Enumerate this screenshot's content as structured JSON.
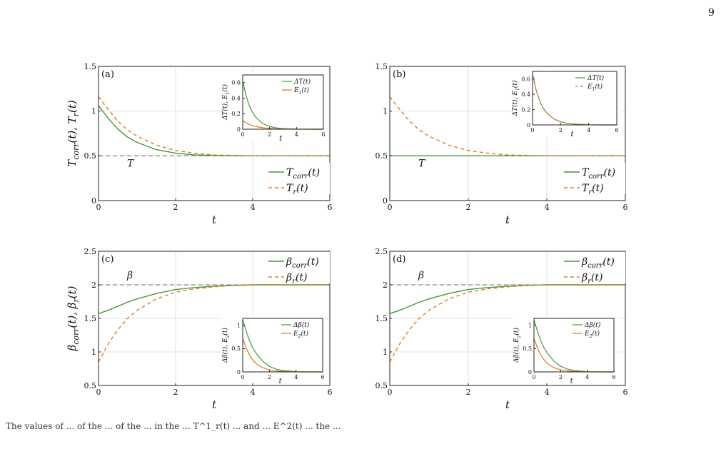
{
  "page_number": "9",
  "caption": "The values of ... of the ... of the ... in the ... T^1_r(t) ... and ... E^2(t) ... the ...",
  "colors": {
    "corr": "#3a9e3a",
    "r": "#e8761a",
    "ref": "#8a8a8a",
    "grid": "#e2e2e2",
    "axis": "#222222"
  },
  "chart_data": [
    {
      "id": "a",
      "type": "line",
      "panel_label": "(a)",
      "xlabel": "t",
      "ylabel": "T_corr(t), T_r(t)",
      "xlim": [
        0,
        6
      ],
      "ylim": [
        0,
        1.5
      ],
      "xticks": [
        0,
        2,
        4,
        6
      ],
      "yticks": [
        0,
        0.5,
        1,
        1.5
      ],
      "ytick_labels": [
        "0",
        "0.5",
        "1",
        "1.5"
      ],
      "grid": true,
      "legend_position": "bottom-right",
      "reference": {
        "value": 0.5,
        "label": "T"
      },
      "series": [
        {
          "name": "T_corr(t)",
          "style": "solid",
          "color": "corr",
          "x": [
            0,
            0.25,
            0.5,
            0.75,
            1,
            1.5,
            2,
            2.5,
            3,
            4,
            5,
            6
          ],
          "y": [
            1.06,
            0.92,
            0.8,
            0.71,
            0.65,
            0.57,
            0.53,
            0.51,
            0.505,
            0.5,
            0.5,
            0.5
          ]
        },
        {
          "name": "T_r(t)",
          "style": "dashed",
          "color": "r",
          "x": [
            0,
            0.25,
            0.5,
            0.75,
            1,
            1.5,
            2,
            2.5,
            3,
            4,
            5,
            6
          ],
          "y": [
            1.16,
            1.02,
            0.89,
            0.79,
            0.72,
            0.62,
            0.56,
            0.53,
            0.51,
            0.5,
            0.5,
            0.5
          ]
        }
      ],
      "inset": {
        "position": "top-right",
        "xlabel": "t",
        "ylabel": "ΔT(t), E_1(t)",
        "xlim": [
          0,
          6
        ],
        "ylim": [
          0,
          0.7
        ],
        "xticks": [
          0,
          2,
          4,
          6
        ],
        "yticks": [
          0,
          0.2,
          0.4,
          0.6
        ],
        "ytick_labels": [
          "0",
          "0.2",
          "0.4",
          "0.6"
        ],
        "series": [
          {
            "name": "ΔT(t)",
            "style": "solid",
            "color": "corr",
            "x": [
              0,
              0.25,
              0.5,
              0.75,
              1,
              1.5,
              2,
              2.5,
              3,
              4,
              5,
              6
            ],
            "y": [
              0.62,
              0.43,
              0.3,
              0.21,
              0.15,
              0.07,
              0.035,
              0.017,
              0.008,
              0.002,
              0.0,
              0.0
            ]
          },
          {
            "name": "E_1(t)",
            "style": "solid",
            "color": "r",
            "x": [
              0,
              0.25,
              0.5,
              0.75,
              1,
              1.5,
              2,
              2.5,
              3,
              4,
              5,
              6
            ],
            "y": [
              0.11,
              0.08,
              0.06,
              0.045,
              0.033,
              0.018,
              0.01,
              0.005,
              0.002,
              0.0,
              0.0,
              0.0
            ]
          }
        ]
      }
    },
    {
      "id": "b",
      "type": "line",
      "panel_label": "(b)",
      "xlabel": "t",
      "ylabel": "",
      "xlim": [
        0,
        6
      ],
      "ylim": [
        0,
        1.5
      ],
      "xticks": [
        0,
        2,
        4,
        6
      ],
      "yticks": [
        0,
        0.5,
        1,
        1.5
      ],
      "ytick_labels": [
        "0",
        "0.5",
        "1",
        "1.5"
      ],
      "grid": true,
      "legend_position": "bottom-right",
      "reference": {
        "value": 0.5,
        "label": "T"
      },
      "series": [
        {
          "name": "T_corr(t)",
          "style": "solid",
          "color": "corr",
          "x": [
            0,
            6
          ],
          "y": [
            0.5,
            0.5
          ]
        },
        {
          "name": "T_r(t)",
          "style": "dashed",
          "color": "r",
          "x": [
            0,
            0.25,
            0.5,
            0.75,
            1,
            1.5,
            2,
            2.5,
            3,
            4,
            5,
            6
          ],
          "y": [
            1.16,
            1.02,
            0.89,
            0.79,
            0.72,
            0.62,
            0.56,
            0.53,
            0.51,
            0.5,
            0.5,
            0.5
          ]
        }
      ],
      "inset": {
        "position": "top-right",
        "xlabel": "t",
        "ylabel": "ΔT(t), E_1(t)",
        "xlim": [
          0,
          6
        ],
        "ylim": [
          0,
          0.7
        ],
        "xticks": [
          0,
          2,
          4,
          6
        ],
        "yticks": [
          0,
          0.2,
          0.4,
          0.6
        ],
        "ytick_labels": [
          "0",
          "0.2",
          "0.4",
          "0.6"
        ],
        "series": [
          {
            "name": "ΔT(t)",
            "style": "solid",
            "color": "corr",
            "x": [
              0,
              0.25,
              0.5,
              0.75,
              1,
              1.5,
              2,
              2.5,
              3,
              4,
              5,
              6
            ],
            "y": [
              0.66,
              0.46,
              0.32,
              0.22,
              0.16,
              0.08,
              0.04,
              0.02,
              0.01,
              0.002,
              0.0,
              0.0
            ]
          },
          {
            "name": "E_1(t)",
            "style": "dashed",
            "color": "r",
            "x": [
              0,
              0.25,
              0.5,
              0.75,
              1,
              1.5,
              2,
              2.5,
              3,
              4,
              5,
              6
            ],
            "y": [
              0.66,
              0.46,
              0.32,
              0.22,
              0.16,
              0.08,
              0.04,
              0.02,
              0.01,
              0.002,
              0.0,
              0.0
            ]
          }
        ]
      }
    },
    {
      "id": "c",
      "type": "line",
      "panel_label": "(c)",
      "xlabel": "t",
      "ylabel": "β_corr(t), β_r(t)",
      "xlim": [
        0,
        6
      ],
      "ylim": [
        0.5,
        2.5
      ],
      "xticks": [
        0,
        2,
        4,
        6
      ],
      "yticks": [
        0.5,
        1,
        1.5,
        2,
        2.5
      ],
      "ytick_labels": [
        "0.5",
        "1",
        "1.5",
        "2",
        "2.5"
      ],
      "grid": true,
      "legend_position": "top-right",
      "reference": {
        "value": 2,
        "label": "β"
      },
      "series": [
        {
          "name": "β_corr(t)",
          "style": "solid",
          "color": "corr",
          "x": [
            0,
            0.25,
            0.5,
            0.75,
            1,
            1.5,
            2,
            2.5,
            3,
            3.5,
            4,
            5,
            6
          ],
          "y": [
            1.57,
            1.62,
            1.68,
            1.74,
            1.79,
            1.87,
            1.93,
            1.96,
            1.98,
            1.99,
            2.0,
            2.0,
            2.0
          ]
        },
        {
          "name": "β_r(t)",
          "style": "dashed",
          "color": "r",
          "x": [
            0,
            0.25,
            0.5,
            0.75,
            1,
            1.5,
            2,
            2.5,
            3,
            3.5,
            4,
            5,
            6
          ],
          "y": [
            0.85,
            1.12,
            1.33,
            1.5,
            1.62,
            1.79,
            1.89,
            1.94,
            1.97,
            1.99,
            2.0,
            2.0,
            2.0
          ]
        }
      ],
      "inset": {
        "position": "bottom-right",
        "xlabel": "t",
        "ylabel": "Δβ(t), E_2(t)",
        "xlim": [
          0,
          6
        ],
        "ylim": [
          0,
          1.15
        ],
        "xticks": [
          0,
          2,
          4,
          6
        ],
        "yticks": [
          0,
          0.5,
          1
        ],
        "ytick_labels": [
          "0",
          "0.5",
          "1"
        ],
        "series": [
          {
            "name": "Δβ(t)",
            "style": "solid",
            "color": "corr",
            "x": [
              0,
              0.25,
              0.5,
              0.75,
              1,
              1.5,
              2,
              2.5,
              3,
              4,
              5,
              6
            ],
            "y": [
              1.12,
              0.88,
              0.68,
              0.52,
              0.4,
              0.23,
              0.12,
              0.06,
              0.03,
              0.005,
              0.0,
              0.0
            ]
          },
          {
            "name": "E_2(t)",
            "style": "solid",
            "color": "r",
            "x": [
              0,
              0.25,
              0.5,
              0.75,
              1,
              1.5,
              2,
              2.5,
              3,
              4,
              5,
              6
            ],
            "y": [
              0.72,
              0.52,
              0.37,
              0.26,
              0.18,
              0.09,
              0.045,
              0.02,
              0.01,
              0.002,
              0.0,
              0.0
            ]
          }
        ]
      }
    },
    {
      "id": "d",
      "type": "line",
      "panel_label": "(d)",
      "xlabel": "t",
      "ylabel": "",
      "xlim": [
        0,
        6
      ],
      "ylim": [
        0.5,
        2.5
      ],
      "xticks": [
        0,
        2,
        4,
        6
      ],
      "yticks": [
        0.5,
        1,
        1.5,
        2,
        2.5
      ],
      "ytick_labels": [
        "0.5",
        "1",
        "1.5",
        "2",
        "2.5"
      ],
      "grid": true,
      "legend_position": "top-right",
      "reference": {
        "value": 2,
        "label": "β"
      },
      "series": [
        {
          "name": "β_corr(t)",
          "style": "solid",
          "color": "corr",
          "x": [
            0,
            0.25,
            0.5,
            0.75,
            1,
            1.5,
            2,
            2.5,
            3,
            3.5,
            4,
            5,
            6
          ],
          "y": [
            1.57,
            1.62,
            1.68,
            1.74,
            1.79,
            1.87,
            1.93,
            1.96,
            1.98,
            1.99,
            2.0,
            2.0,
            2.0
          ]
        },
        {
          "name": "β_r(t)",
          "style": "dashed",
          "color": "r",
          "x": [
            0,
            0.25,
            0.5,
            0.75,
            1,
            1.5,
            2,
            2.5,
            3,
            3.5,
            4,
            5,
            6
          ],
          "y": [
            0.85,
            1.12,
            1.33,
            1.5,
            1.62,
            1.79,
            1.89,
            1.94,
            1.97,
            1.99,
            2.0,
            2.0,
            2.0
          ]
        }
      ],
      "inset": {
        "position": "bottom-right",
        "xlabel": "t",
        "ylabel": "Δβ(t), E_2(t)",
        "xlim": [
          0,
          6
        ],
        "ylim": [
          0,
          1.15
        ],
        "xticks": [
          0,
          2,
          4,
          6
        ],
        "yticks": [
          0,
          0.5,
          1
        ],
        "ytick_labels": [
          "0",
          "0.5",
          "1"
        ],
        "series": [
          {
            "name": "Δβ(t)",
            "style": "solid",
            "color": "corr",
            "x": [
              0,
              0.25,
              0.5,
              0.75,
              1,
              1.5,
              2,
              2.5,
              3,
              4,
              5,
              6
            ],
            "y": [
              1.12,
              0.88,
              0.68,
              0.52,
              0.4,
              0.23,
              0.12,
              0.06,
              0.03,
              0.005,
              0.0,
              0.0
            ]
          },
          {
            "name": "E_2(t)",
            "style": "solid",
            "color": "r",
            "x": [
              0,
              0.25,
              0.5,
              0.75,
              1,
              1.5,
              2,
              2.5,
              3,
              4,
              5,
              6
            ],
            "y": [
              0.72,
              0.52,
              0.37,
              0.26,
              0.18,
              0.09,
              0.045,
              0.02,
              0.01,
              0.002,
              0.0,
              0.0
            ]
          }
        ]
      }
    }
  ]
}
